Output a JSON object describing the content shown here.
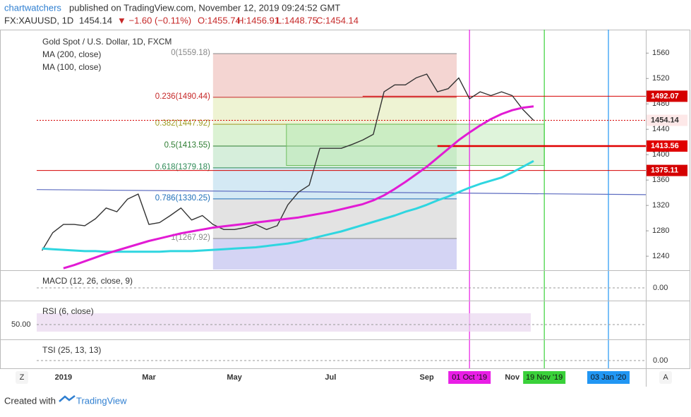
{
  "header": {
    "author": "chartwatchers",
    "published": "published on TradingView.com, November 12, 2019 09:24:52 GMT",
    "symbol": "FX:XAUUSD, 1D",
    "last": "1454.14",
    "change": "▼ −1.60 (−0.11%)",
    "ohlc": [
      "O:1455.74",
      "H:1456.91",
      "L:1448.75",
      "C:1454.14"
    ]
  },
  "footer": {
    "created": "Created with",
    "brand": "TradingView"
  },
  "corner_buttons": [
    "Z",
    "A"
  ],
  "chart_data": {
    "type": "line",
    "title": "Gold Spot / U.S. Dollar, 1D, FXCM",
    "categories": [
      null,
      null,
      "2019",
      null,
      null,
      null,
      null,
      null,
      null,
      null,
      "Mar",
      null,
      null,
      null,
      null,
      null,
      null,
      null,
      "May",
      null,
      null,
      null,
      null,
      null,
      null,
      null,
      null,
      "Jul",
      null,
      null,
      null,
      null,
      null,
      null,
      null,
      null,
      "Sep",
      null,
      null,
      null,
      "01 Oct '19",
      null,
      null,
      null,
      "Nov",
      null,
      null,
      "19 Nov '19",
      null,
      null,
      null,
      null,
      null,
      "03 Jan '20",
      null,
      null,
      null
    ],
    "series": [
      {
        "color": "#333333",
        "values": [
          1249,
          1277,
          1290,
          1290,
          1288,
          1299,
          1316,
          1310,
          1330,
          1338,
          1290,
          1293,
          1304,
          1316,
          1297,
          1304,
          1290,
          1282,
          1282,
          1285,
          1290,
          1282,
          1288,
          1321,
          1341,
          1352,
          1410,
          1410,
          1410,
          1416,
          1423,
          1432,
          1499,
          1510,
          1510,
          1521,
          1527,
          1499,
          1504,
          1521,
          1488,
          1499,
          1493,
          1499,
          1493,
          1471,
          1454,
          null,
          null,
          null,
          null,
          null,
          null,
          null,
          null,
          null,
          null
        ]
      },
      {
        "name": "MA (200, close)",
        "color": "#2fd6e0",
        "values": [
          1252,
          1251,
          1250,
          1249,
          1248,
          1248,
          1247,
          1247,
          1247,
          1247,
          1247,
          1247,
          1248,
          1248,
          1248,
          1249,
          1250,
          1251,
          1252,
          1253,
          1254,
          1256,
          1258,
          1260,
          1263,
          1267,
          1271,
          1275,
          1279,
          1284,
          1289,
          1294,
          1299,
          1304,
          1310,
          1315,
          1321,
          1328,
          1334,
          1341,
          1348,
          1354,
          1359,
          1364,
          1372,
          1381,
          1390,
          null,
          null,
          null,
          null,
          null,
          null,
          null,
          null,
          null,
          null
        ]
      },
      {
        "name": "MA (100, close)",
        "color": "#e21bd4",
        "values": [
          null,
          null,
          1221,
          1226,
          1232,
          1238,
          1244,
          1249,
          1254,
          1259,
          1264,
          1268,
          1272,
          1276,
          1279,
          1282,
          1285,
          1287,
          1289,
          1291,
          1293,
          1295,
          1297,
          1299,
          1301,
          1304,
          1307,
          1310,
          1314,
          1318,
          1322,
          1328,
          1336,
          1346,
          1357,
          1369,
          1381,
          1395,
          1409,
          1423,
          1435,
          1446,
          1456,
          1464,
          1470,
          1474,
          1476,
          null,
          null,
          null,
          null,
          null,
          null,
          null,
          null,
          null,
          null
        ]
      }
    ],
    "ylim": [
      1219,
      1597
    ],
    "yticks": [
      1240,
      1280,
      1320,
      1360,
      1400,
      1440,
      1480,
      1520,
      1560
    ],
    "fib_levels": [
      {
        "label": "0(1559.18)",
        "value": 1559.18,
        "color": "#888888",
        "band": "#f4d5d2"
      },
      {
        "label": "0.236(1490.44)",
        "value": 1490.44,
        "color": "#c62828",
        "band": "#eef3d3"
      },
      {
        "label": "0.382(1447.92)",
        "value": 1447.92,
        "color": "#9e9d24",
        "band": "#dbf2d3"
      },
      {
        "label": "0.5(1413.55)",
        "value": 1413.55,
        "color": "#2e7d32",
        "band": "#d6eedb"
      },
      {
        "label": "0.618(1379.18)",
        "value": 1379.18,
        "color": "#2e8b57",
        "band": "#d4e9f4"
      },
      {
        "label": "0.786(1330.25)",
        "value": 1330.25,
        "color": "#1e6fb8",
        "band": "#e3e3e3"
      },
      {
        "label": "1(1267.92)",
        "value": 1267.92,
        "color": "#888888",
        "band": "#d4d4f4"
      }
    ],
    "price_lines": [
      {
        "value": 1492.07,
        "color": "#d50000"
      },
      {
        "value": 1454.14,
        "color": "#d50000"
      },
      {
        "value": 1413.56,
        "color": "#e00000"
      },
      {
        "value": 1375.11,
        "color": "#d50000"
      }
    ],
    "zone": {
      "top": 1448,
      "bottom": 1383,
      "color": "#b9e6b0"
    },
    "trendline": {
      "start": 1345,
      "end": 1337,
      "color": "#5c6bc0"
    },
    "verticals": [
      {
        "category": "01 Oct '19",
        "color": "#e91ee6"
      },
      {
        "category": "19 Nov '19",
        "color": "#3ad13a"
      },
      {
        "category": "03 Jan '20",
        "color": "#2196f3"
      }
    ],
    "panes": [
      {
        "label": "MACD (12, 26, close, 9)",
        "tick": "0.00"
      },
      {
        "label": "RSI (6, close)",
        "tick": "50.00"
      },
      {
        "label": "TSI (25, 13, 13)",
        "tick": "0.00"
      }
    ]
  }
}
